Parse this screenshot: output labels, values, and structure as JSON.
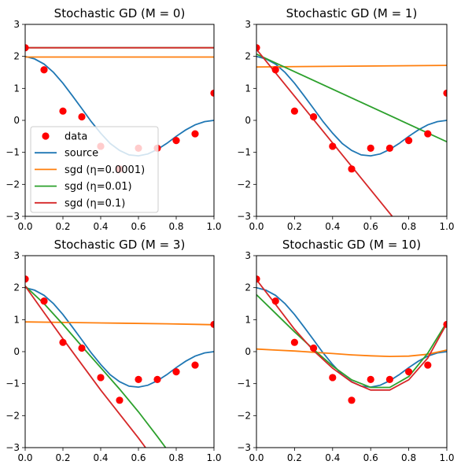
{
  "chart_data": [
    {
      "type": "line",
      "title": "Stochastic GD (M = 0)",
      "xlim": [
        0,
        1
      ],
      "ylim": [
        -3,
        3
      ],
      "xticks": [
        "0.0",
        "0.2",
        "0.4",
        "0.6",
        "0.8",
        "1.0"
      ],
      "yticks": [
        "3",
        "2",
        "1",
        "0",
        "−1",
        "−2",
        "−3"
      ],
      "legend": {
        "placement": "lower-left"
      },
      "points": {
        "name": "data",
        "x": [
          0.0,
          0.1,
          0.2,
          0.3,
          0.4,
          0.5,
          0.6,
          0.7,
          0.8,
          0.9,
          1.0
        ],
        "y": [
          2.27,
          1.58,
          0.29,
          0.11,
          -0.81,
          -1.52,
          -0.87,
          -0.87,
          -0.63,
          -0.42,
          0.85
        ]
      },
      "source": {
        "name": "source",
        "x": [
          0,
          0.05,
          0.1,
          0.15,
          0.2,
          0.25,
          0.3,
          0.35,
          0.4,
          0.45,
          0.5,
          0.55,
          0.6,
          0.65,
          0.7,
          0.75,
          0.8,
          0.85,
          0.9,
          0.95,
          1.0
        ],
        "y": [
          2.0,
          1.92,
          1.76,
          1.5,
          1.16,
          0.77,
          0.37,
          -0.04,
          -0.4,
          -0.72,
          -0.94,
          -1.08,
          -1.11,
          -1.05,
          -0.91,
          -0.72,
          -0.5,
          -0.3,
          -0.14,
          -0.04,
          0.0
        ]
      },
      "series": [
        {
          "name": "sgd (η=0.0001)",
          "x": [
            0,
            1
          ],
          "y": [
            1.98,
            1.98
          ]
        },
        {
          "name": "sgd (η=0.01)",
          "x": [
            0,
            1
          ],
          "y": [
            2.27,
            2.27
          ]
        },
        {
          "name": "sgd (η=0.1)",
          "x": [
            0,
            1
          ],
          "y": [
            2.27,
            2.27
          ]
        }
      ]
    },
    {
      "type": "line",
      "title": "Stochastic GD (M = 1)",
      "xlim": [
        0,
        1
      ],
      "ylim": [
        -3,
        3
      ],
      "xticks": [
        "0.0",
        "0.2",
        "0.4",
        "0.6",
        "0.8",
        "1.0"
      ],
      "yticks": [
        "3",
        "2",
        "1",
        "0",
        "−1",
        "−2",
        "−3"
      ],
      "points": {
        "x": [
          0.0,
          0.1,
          0.2,
          0.3,
          0.4,
          0.5,
          0.6,
          0.7,
          0.8,
          0.9,
          1.0
        ],
        "y": [
          2.27,
          1.58,
          0.29,
          0.11,
          -0.81,
          -1.52,
          -0.87,
          -0.87,
          -0.63,
          -0.42,
          0.85
        ]
      },
      "source": {
        "x": [
          0,
          0.05,
          0.1,
          0.15,
          0.2,
          0.25,
          0.3,
          0.35,
          0.4,
          0.45,
          0.5,
          0.55,
          0.6,
          0.65,
          0.7,
          0.75,
          0.8,
          0.85,
          0.9,
          0.95,
          1.0
        ],
        "y": [
          2.0,
          1.92,
          1.76,
          1.5,
          1.16,
          0.77,
          0.37,
          -0.04,
          -0.4,
          -0.72,
          -0.94,
          -1.08,
          -1.11,
          -1.05,
          -0.91,
          -0.72,
          -0.5,
          -0.3,
          -0.14,
          -0.04,
          0.0
        ]
      },
      "series": [
        {
          "x": [
            0,
            1
          ],
          "y": [
            1.67,
            1.72
          ]
        },
        {
          "x": [
            0,
            1
          ],
          "y": [
            2.07,
            -0.67
          ]
        },
        {
          "x": [
            0,
            1
          ],
          "y": [
            2.22,
            -5.1
          ]
        }
      ]
    },
    {
      "type": "line",
      "title": "Stochastic GD (M = 3)",
      "xlim": [
        0,
        1
      ],
      "ylim": [
        -3,
        3
      ],
      "xticks": [
        "0.0",
        "0.2",
        "0.4",
        "0.6",
        "0.8",
        "1.0"
      ],
      "yticks": [
        "3",
        "2",
        "1",
        "0",
        "−1",
        "−2",
        "−3"
      ],
      "points": {
        "x": [
          0.0,
          0.1,
          0.2,
          0.3,
          0.4,
          0.5,
          0.6,
          0.7,
          0.8,
          0.9,
          1.0
        ],
        "y": [
          2.27,
          1.58,
          0.29,
          0.11,
          -0.81,
          -1.52,
          -0.87,
          -0.87,
          -0.63,
          -0.42,
          0.85
        ]
      },
      "source": {
        "x": [
          0,
          0.05,
          0.1,
          0.15,
          0.2,
          0.25,
          0.3,
          0.35,
          0.4,
          0.45,
          0.5,
          0.55,
          0.6,
          0.65,
          0.7,
          0.75,
          0.8,
          0.85,
          0.9,
          0.95,
          1.0
        ],
        "y": [
          2.0,
          1.92,
          1.76,
          1.5,
          1.16,
          0.77,
          0.37,
          -0.04,
          -0.4,
          -0.72,
          -0.94,
          -1.08,
          -1.11,
          -1.05,
          -0.91,
          -0.72,
          -0.5,
          -0.3,
          -0.14,
          -0.04,
          0.0
        ]
      },
      "series": [
        {
          "x": [
            0,
            0.25,
            0.5,
            0.75,
            1.0
          ],
          "y": [
            0.93,
            0.91,
            0.89,
            0.87,
            0.84
          ]
        },
        {
          "x": [
            0,
            0.1,
            0.2,
            0.3,
            0.4,
            0.5,
            0.6,
            0.7,
            0.75
          ],
          "y": [
            2.05,
            1.5,
            0.85,
            0.17,
            -0.5,
            -1.17,
            -1.88,
            -2.65,
            -3.05
          ]
        },
        {
          "x": [
            0,
            0.1,
            0.2,
            0.3,
            0.4,
            0.5,
            0.6,
            0.64
          ],
          "y": [
            2.05,
            1.22,
            0.4,
            -0.4,
            -1.2,
            -1.95,
            -2.7,
            -3.02
          ]
        }
      ]
    },
    {
      "type": "line",
      "title": "Stochastic GD (M = 10)",
      "xlim": [
        0,
        1
      ],
      "ylim": [
        -3,
        3
      ],
      "xticks": [
        "0.0",
        "0.2",
        "0.4",
        "0.6",
        "0.8",
        "1.0"
      ],
      "yticks": [
        "3",
        "2",
        "1",
        "0",
        "−1",
        "−2",
        "−3"
      ],
      "points": {
        "x": [
          0.0,
          0.1,
          0.2,
          0.3,
          0.4,
          0.5,
          0.6,
          0.7,
          0.8,
          0.9,
          1.0
        ],
        "y": [
          2.27,
          1.58,
          0.29,
          0.11,
          -0.81,
          -1.52,
          -0.87,
          -0.87,
          -0.63,
          -0.42,
          0.85
        ]
      },
      "source": {
        "x": [
          0,
          0.05,
          0.1,
          0.15,
          0.2,
          0.25,
          0.3,
          0.35,
          0.4,
          0.45,
          0.5,
          0.55,
          0.6,
          0.65,
          0.7,
          0.75,
          0.8,
          0.85,
          0.9,
          0.95,
          1.0
        ],
        "y": [
          2.0,
          1.92,
          1.76,
          1.5,
          1.16,
          0.77,
          0.37,
          -0.04,
          -0.4,
          -0.72,
          -0.94,
          -1.08,
          -1.11,
          -1.05,
          -0.91,
          -0.72,
          -0.5,
          -0.3,
          -0.14,
          -0.04,
          0.0
        ]
      },
      "series": [
        {
          "x": [
            0,
            0.1,
            0.2,
            0.3,
            0.4,
            0.5,
            0.6,
            0.7,
            0.8,
            0.9,
            1.0
          ],
          "y": [
            0.08,
            0.05,
            0.02,
            -0.02,
            -0.06,
            -0.1,
            -0.13,
            -0.15,
            -0.14,
            -0.08,
            0.05
          ]
        },
        {
          "x": [
            0,
            0.1,
            0.2,
            0.3,
            0.4,
            0.5,
            0.6,
            0.7,
            0.8,
            0.9,
            1.0
          ],
          "y": [
            1.78,
            1.2,
            0.62,
            0.07,
            -0.45,
            -0.88,
            -1.12,
            -1.12,
            -0.78,
            -0.05,
            0.92
          ]
        },
        {
          "x": [
            0,
            0.1,
            0.2,
            0.3,
            0.4,
            0.5,
            0.6,
            0.7,
            0.8,
            0.9,
            1.0
          ],
          "y": [
            2.25,
            1.48,
            0.7,
            0.03,
            -0.52,
            -0.95,
            -1.2,
            -1.2,
            -0.88,
            -0.2,
            0.88
          ]
        }
      ]
    }
  ],
  "colors": {
    "data": "#ff0000",
    "source": "#1f77b4",
    "series": [
      "#ff7f0e",
      "#2ca02c",
      "#d62728"
    ]
  }
}
